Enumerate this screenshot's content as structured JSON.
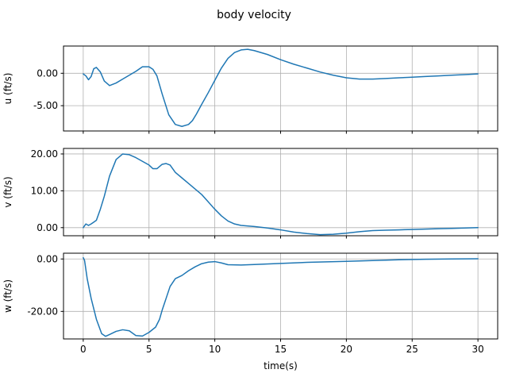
{
  "title": "body velocity",
  "chart_data": [
    {
      "type": "line",
      "ylabel": "u (ft/s)",
      "xlabel": "",
      "xlim": [
        -1.5,
        31.5
      ],
      "ylim": [
        -8.9,
        4.2
      ],
      "xticks": [
        0,
        5,
        10,
        15,
        20,
        25,
        30
      ],
      "xtick_labels_visible": false,
      "yticks": [
        0,
        -5
      ],
      "ytick_labels": [
        "0.00",
        "-5.00"
      ],
      "grid": true,
      "color": "#1f77b4",
      "series": [
        {
          "x": [
            0,
            0.2,
            0.4,
            0.6,
            0.8,
            1.0,
            1.3,
            1.6,
            2.0,
            2.5,
            3.0,
            3.5,
            4.0,
            4.5,
            5.0,
            5.3,
            5.6,
            6.0,
            6.5,
            7.0,
            7.5,
            8.0,
            8.3,
            8.6,
            9.0,
            9.5,
            10.0,
            10.5,
            11.0,
            11.5,
            12.0,
            12.5,
            13.0,
            14.0,
            15.0,
            16.0,
            17.0,
            18.0,
            19.0,
            20.0,
            21.0,
            22.0,
            23.0,
            24.0,
            25.0,
            26.0,
            27.0,
            28.0,
            29.0,
            30.0
          ],
          "y": [
            -0.1,
            -0.4,
            -1.0,
            -0.5,
            0.7,
            0.9,
            0.2,
            -1.2,
            -1.9,
            -1.5,
            -0.9,
            -0.3,
            0.3,
            1.0,
            1.0,
            0.6,
            -0.4,
            -3.2,
            -6.4,
            -7.9,
            -8.2,
            -7.9,
            -7.3,
            -6.3,
            -4.8,
            -3.0,
            -1.1,
            0.8,
            2.3,
            3.2,
            3.6,
            3.7,
            3.5,
            2.9,
            2.1,
            1.4,
            0.8,
            0.2,
            -0.3,
            -0.7,
            -0.9,
            -0.9,
            -0.8,
            -0.7,
            -0.6,
            -0.5,
            -0.4,
            -0.3,
            -0.2,
            -0.1
          ]
        }
      ]
    },
    {
      "type": "line",
      "ylabel": "v (ft/s)",
      "xlabel": "",
      "xlim": [
        -1.5,
        31.5
      ],
      "ylim": [
        -2.2,
        21.5
      ],
      "xticks": [
        0,
        5,
        10,
        15,
        20,
        25,
        30
      ],
      "xtick_labels_visible": false,
      "yticks": [
        0,
        10,
        20
      ],
      "ytick_labels": [
        "0.00",
        "10.00",
        "20.00"
      ],
      "grid": true,
      "color": "#1f77b4",
      "series": [
        {
          "x": [
            0,
            0.2,
            0.4,
            0.6,
            0.8,
            1.0,
            1.3,
            1.6,
            2.0,
            2.5,
            3.0,
            3.5,
            4.0,
            4.5,
            5.0,
            5.3,
            5.6,
            6.0,
            6.3,
            6.6,
            7.0,
            7.5,
            8.0,
            8.5,
            9.0,
            9.5,
            10.0,
            10.5,
            11.0,
            11.5,
            12.0,
            13.0,
            14.0,
            15.0,
            16.0,
            17.0,
            18.0,
            19.0,
            20.0,
            21.0,
            22.0,
            23.0,
            24.0,
            25.0,
            26.0,
            27.0,
            28.0,
            29.0,
            30.0
          ],
          "y": [
            0.0,
            1.0,
            0.6,
            1.0,
            1.5,
            2.0,
            5.0,
            8.5,
            14.0,
            18.5,
            20.0,
            19.8,
            19.0,
            18.0,
            17.0,
            16.0,
            16.0,
            17.2,
            17.4,
            17.0,
            15.0,
            13.5,
            12.0,
            10.5,
            9.0,
            7.0,
            5.0,
            3.2,
            1.8,
            1.0,
            0.6,
            0.3,
            -0.1,
            -0.6,
            -1.2,
            -1.6,
            -1.9,
            -1.8,
            -1.5,
            -1.1,
            -0.8,
            -0.7,
            -0.6,
            -0.5,
            -0.4,
            -0.3,
            -0.2,
            -0.1,
            0.0
          ]
        }
      ]
    },
    {
      "type": "line",
      "ylabel": "w (ft/s)",
      "xlabel": "time(s)",
      "xlim": [
        -1.5,
        31.5
      ],
      "ylim": [
        -30.5,
        2.2
      ],
      "xticks": [
        0,
        5,
        10,
        15,
        20,
        25,
        30
      ],
      "xtick_labels_visible": true,
      "xtick_labels": [
        "0",
        "5",
        "10",
        "15",
        "20",
        "25",
        "30"
      ],
      "yticks": [
        0,
        -20
      ],
      "ytick_labels": [
        "0.00",
        "-20.00"
      ],
      "grid": true,
      "color": "#1f77b4",
      "series": [
        {
          "x": [
            0,
            0.1,
            0.3,
            0.6,
            1.0,
            1.4,
            1.7,
            2.0,
            2.5,
            3.0,
            3.5,
            4.0,
            4.5,
            5.0,
            5.5,
            5.8,
            6.0,
            6.3,
            6.6,
            7.0,
            7.5,
            8.0,
            8.5,
            9.0,
            9.5,
            10.0,
            10.5,
            11.0,
            12.0,
            13.0,
            15.0,
            17.0,
            20.0,
            22.0,
            24.0,
            26.0,
            28.0,
            30.0
          ],
          "y": [
            0.5,
            -0.5,
            -7.5,
            -15.0,
            -23.0,
            -28.5,
            -29.5,
            -28.8,
            -27.6,
            -27.0,
            -27.4,
            -29.2,
            -29.4,
            -28.0,
            -26.0,
            -23.0,
            -19.5,
            -15.0,
            -10.5,
            -7.5,
            -6.3,
            -4.5,
            -3.0,
            -1.8,
            -1.2,
            -1.0,
            -1.5,
            -2.2,
            -2.3,
            -2.1,
            -1.7,
            -1.3,
            -0.9,
            -0.6,
            -0.3,
            -0.1,
            0.0,
            0.1
          ]
        }
      ]
    }
  ]
}
